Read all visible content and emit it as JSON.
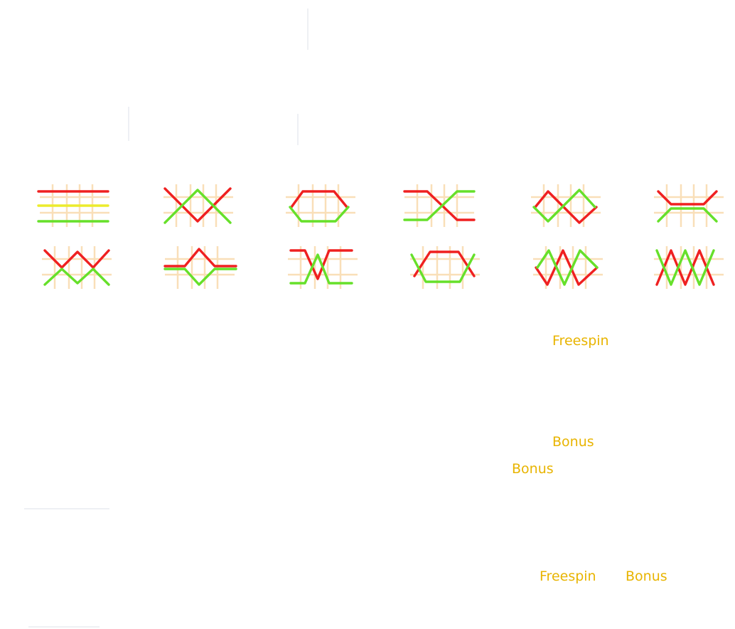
{
  "colors": {
    "background": "#ffffff",
    "line_red": "#ef2020",
    "line_green": "#66e02a",
    "line_yellow": "#ecec2c",
    "grid": "#f9dfb8",
    "label": "#e8b400"
  },
  "paylines": [
    {
      "id": 1,
      "lines": [
        {
          "color": "red",
          "path": "flat-top"
        },
        {
          "color": "yellow",
          "path": "flat-middle"
        },
        {
          "color": "green",
          "path": "flat-bottom"
        }
      ]
    },
    {
      "id": 2,
      "lines": [
        {
          "color": "red",
          "path": "v-shape"
        },
        {
          "color": "green",
          "path": "inverted-v"
        }
      ]
    },
    {
      "id": 3,
      "lines": [
        {
          "color": "red",
          "path": "hexagon-top"
        },
        {
          "color": "green",
          "path": "hexagon-bottom"
        }
      ]
    },
    {
      "id": 4,
      "lines": [
        {
          "color": "red",
          "path": "step-down"
        },
        {
          "color": "green",
          "path": "step-up"
        }
      ]
    },
    {
      "id": 5,
      "lines": [
        {
          "color": "red",
          "path": "double-diamond-a"
        },
        {
          "color": "green",
          "path": "double-diamond-b"
        }
      ]
    },
    {
      "id": 6,
      "lines": [
        {
          "color": "red",
          "path": "trough"
        },
        {
          "color": "green",
          "path": "ridge"
        }
      ]
    },
    {
      "id": 7,
      "lines": [
        {
          "color": "red",
          "path": "w-shape"
        },
        {
          "color": "green",
          "path": "m-shape"
        }
      ]
    },
    {
      "id": 8,
      "lines": [
        {
          "color": "red",
          "path": "bump-up"
        },
        {
          "color": "green",
          "path": "bump-down"
        }
      ]
    },
    {
      "id": 9,
      "lines": [
        {
          "color": "red",
          "path": "top-dip"
        },
        {
          "color": "green",
          "path": "bottom-peak"
        }
      ]
    },
    {
      "id": 10,
      "lines": [
        {
          "color": "red",
          "path": "box-top"
        },
        {
          "color": "green",
          "path": "box-bottom"
        }
      ]
    },
    {
      "id": 11,
      "lines": [
        {
          "color": "red",
          "path": "zigzag-down"
        },
        {
          "color": "green",
          "path": "zigzag-up"
        }
      ]
    },
    {
      "id": 12,
      "lines": [
        {
          "color": "red",
          "path": "sawtooth-a"
        },
        {
          "color": "green",
          "path": "sawtooth-b"
        }
      ]
    }
  ],
  "labels": {
    "freespin_top": "Freespin",
    "bonus_mid": "Bonus",
    "bonus_left": "Bonus",
    "freespin_bottom": "Freespin",
    "bonus_bottom": "Bonus"
  }
}
